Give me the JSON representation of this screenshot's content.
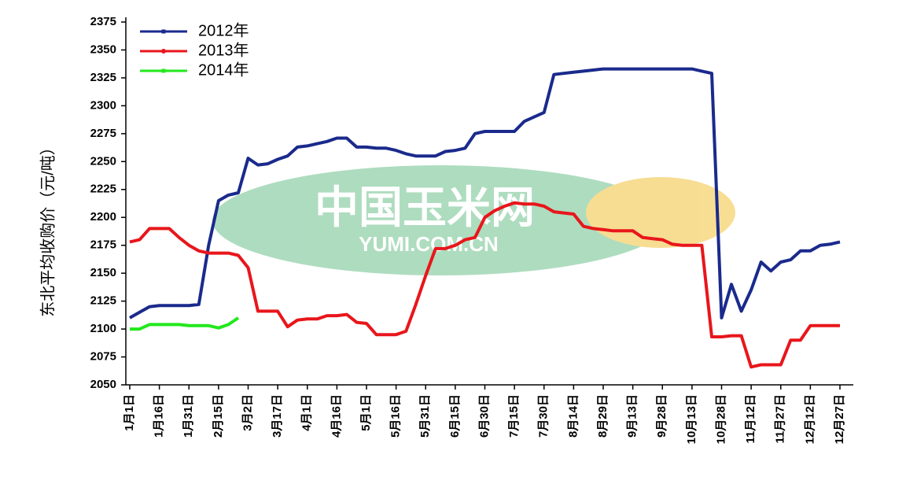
{
  "chart_data": {
    "type": "line",
    "y_label": "东北平均收购价（元/吨）",
    "watermark": {
      "title": "中国玉米网",
      "subtitle": "YUMI.COM.CN"
    },
    "categories": [
      "1月1日",
      null,
      null,
      "1月16日",
      null,
      null,
      "1月31日",
      null,
      null,
      "2月15日",
      null,
      null,
      "3月2日",
      null,
      null,
      "3月17日",
      null,
      null,
      "4月1日",
      null,
      null,
      "4月16日",
      null,
      null,
      "5月1日",
      null,
      null,
      "5月16日",
      null,
      null,
      "5月31日",
      null,
      null,
      "6月15日",
      null,
      null,
      "6月30日",
      null,
      null,
      "7月15日",
      null,
      null,
      "7月30日",
      null,
      null,
      "8月14日",
      null,
      null,
      "8月29日",
      null,
      null,
      "9月13日",
      null,
      null,
      "9月28日",
      null,
      null,
      "10月13日",
      null,
      null,
      "10月28日",
      null,
      null,
      "11月12日",
      null,
      null,
      "11月27日",
      null,
      null,
      "12月12日",
      null,
      null,
      "12月27日"
    ],
    "series": [
      {
        "name": "2012年",
        "color": "#1a2a8c",
        "marker": "square",
        "values": [
          2110,
          2115,
          2120,
          2121,
          2121,
          2121,
          2121,
          2122,
          2175,
          2215,
          2220,
          2222,
          2253,
          2247,
          2248,
          2252,
          2255,
          2263,
          2264,
          2266,
          2268,
          2271,
          2271,
          2263,
          2263,
          2262,
          2262,
          2260,
          2257,
          2255,
          2255,
          2255,
          2259,
          2260,
          2262,
          2275,
          2277,
          2277,
          2277,
          2277,
          2286,
          2290,
          2294,
          2328,
          2329,
          2330,
          2331,
          2332,
          2333,
          2333,
          2333,
          2333,
          2333,
          2333,
          2333,
          2333,
          2333,
          2333,
          2331,
          2329,
          2110,
          2140,
          2116,
          2135,
          2160,
          2152,
          2160,
          2162,
          2170,
          2170,
          2175,
          2176,
          2178
        ]
      },
      {
        "name": "2013年",
        "color": "#e8161b",
        "marker": "circle",
        "values": [
          2178,
          2180,
          2190,
          2190,
          2190,
          2182,
          2175,
          2170,
          2168,
          2168,
          2168,
          2166,
          2155,
          2116,
          2116,
          2116,
          2102,
          2108,
          2109,
          2109,
          2112,
          2112,
          2113,
          2106,
          2105,
          2095,
          2095,
          2095,
          2098,
          2122,
          2148,
          2172,
          2172,
          2175,
          2180,
          2182,
          2200,
          2206,
          2210,
          2213,
          2212,
          2212,
          2210,
          2205,
          2204,
          2203,
          2192,
          2190,
          2189,
          2188,
          2188,
          2188,
          2182,
          2181,
          2180,
          2176,
          2175,
          2175,
          2175,
          2093,
          2093,
          2094,
          2094,
          2066,
          2068,
          2068,
          2068,
          2090,
          2090,
          2103,
          2103,
          2103,
          2103
        ]
      },
      {
        "name": "2014年",
        "color": "#22e81c",
        "marker": "square",
        "values": [
          2100,
          2100,
          2104,
          2104,
          2104,
          2104,
          2103,
          2103,
          2103,
          2101,
          2104,
          2110,
          null,
          null,
          null,
          null,
          null,
          null,
          null,
          null,
          null,
          null,
          null,
          null,
          null,
          null,
          null,
          null,
          null,
          null,
          null,
          null,
          null,
          null,
          null,
          null,
          null,
          null,
          null,
          null,
          null,
          null,
          null,
          null,
          null,
          null,
          null,
          null,
          null,
          null,
          null,
          null,
          null,
          null,
          null,
          null,
          null,
          null,
          null,
          null,
          null,
          null,
          null,
          null,
          null,
          null,
          null,
          null,
          null,
          null,
          null,
          null,
          null
        ]
      }
    ],
    "ylim": [
      2050,
      2375
    ],
    "yticks": [
      2050,
      2075,
      2100,
      2125,
      2150,
      2175,
      2200,
      2225,
      2250,
      2275,
      2300,
      2325,
      2350,
      2375
    ],
    "legend": "top-left"
  }
}
